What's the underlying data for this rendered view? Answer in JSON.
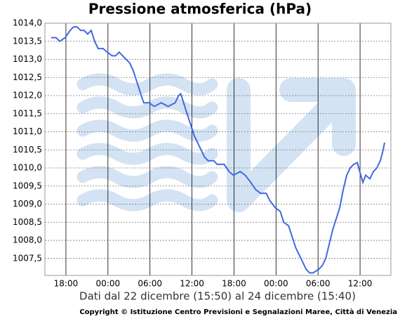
{
  "chart_data": {
    "type": "line",
    "title": "Pressione atmosferica (hPa)",
    "x_label": "Dati dal 22 dicembre (15:50) al 24 dicembre (15:40)",
    "source": "Copyright © Istituzione Centro Previsioni e Segnalazioni Maree, Città di Venezia",
    "x": [
      15.9,
      16.6,
      17.1,
      17.9,
      18.6,
      19.1,
      19.6,
      20.1,
      20.6,
      21.1,
      21.6,
      22.1,
      22.6,
      23.3,
      23.9,
      24.6,
      25.1,
      25.6,
      26.1,
      26.6,
      27.1,
      27.6,
      28.1,
      28.6,
      29.1,
      29.9,
      30.6,
      31.6,
      32.6,
      33.6,
      34.1,
      34.4,
      34.8,
      35.3,
      35.8,
      36.3,
      36.8,
      37.3,
      37.8,
      38.3,
      39.1,
      39.6,
      40.6,
      41.3,
      41.9,
      42.9,
      43.6,
      44.4,
      45.1,
      45.8,
      46.6,
      47.1,
      47.9,
      48.6,
      49.1,
      49.8,
      50.3,
      50.8,
      51.3,
      51.8,
      52.3,
      52.8,
      53.3,
      54.1,
      54.6,
      55.1,
      55.6,
      56.1,
      56.6,
      57.1,
      57.6,
      58.1,
      58.6,
      59.1,
      59.6,
      60.1,
      60.4,
      60.8,
      61.4,
      61.9,
      62.4,
      62.9,
      63.3,
      63.5
    ],
    "series": [
      {
        "name": "Pressione",
        "color": "#4169e1",
        "values": [
          1013.6,
          1013.6,
          1013.5,
          1013.6,
          1013.8,
          1013.9,
          1013.9,
          1013.8,
          1013.8,
          1013.7,
          1013.8,
          1013.5,
          1013.3,
          1013.3,
          1013.2,
          1013.1,
          1013.1,
          1013.2,
          1013.1,
          1013.0,
          1012.9,
          1012.7,
          1012.4,
          1012.1,
          1011.8,
          1011.8,
          1011.7,
          1011.8,
          1011.7,
          1011.8,
          1012.0,
          1012.05,
          1011.8,
          1011.5,
          1011.2,
          1010.9,
          1010.7,
          1010.5,
          1010.3,
          1010.2,
          1010.2,
          1010.1,
          1010.1,
          1009.9,
          1009.8,
          1009.9,
          1009.8,
          1009.6,
          1009.4,
          1009.3,
          1009.3,
          1009.1,
          1008.9,
          1008.8,
          1008.5,
          1008.4,
          1008.1,
          1007.8,
          1007.6,
          1007.4,
          1007.2,
          1007.1,
          1007.1,
          1007.2,
          1007.3,
          1007.5,
          1007.9,
          1008.3,
          1008.6,
          1008.9,
          1009.4,
          1009.8,
          1010.0,
          1010.1,
          1010.15,
          1009.8,
          1009.6,
          1009.8,
          1009.7,
          1009.9,
          1010.0,
          1010.2,
          1010.5,
          1010.7
        ]
      }
    ],
    "xlim": [
      15,
      64.4
    ],
    "xticks": [
      {
        "value": 18,
        "label": "18:00"
      },
      {
        "value": 24,
        "label": "00:00"
      },
      {
        "value": 30,
        "label": "06:00"
      },
      {
        "value": 36,
        "label": "12:00"
      },
      {
        "value": 42,
        "label": "18:00"
      },
      {
        "value": 48,
        "label": "00:00"
      },
      {
        "value": 54,
        "label": "06:00"
      },
      {
        "value": 60,
        "label": "12:00"
      }
    ],
    "ylim": [
      1007.03,
      1014.0
    ],
    "yticks": [
      {
        "value": 1007.5,
        "label": "1007,5"
      },
      {
        "value": 1008.0,
        "label": "1008,0"
      },
      {
        "value": 1008.5,
        "label": "1008,5"
      },
      {
        "value": 1009.0,
        "label": "1009,0"
      },
      {
        "value": 1009.5,
        "label": "1009,5"
      },
      {
        "value": 1010.0,
        "label": "1010,0"
      },
      {
        "value": 1010.5,
        "label": "1010,5"
      },
      {
        "value": 1011.0,
        "label": "1011,0"
      },
      {
        "value": 1011.5,
        "label": "1011,5"
      },
      {
        "value": 1012.0,
        "label": "1012,0"
      },
      {
        "value": 1012.5,
        "label": "1012,5"
      },
      {
        "value": 1013.0,
        "label": "1013,0"
      },
      {
        "value": 1013.5,
        "label": "1013,5"
      },
      {
        "value": 1014.0,
        "label": "1014,0"
      }
    ],
    "grid": true
  }
}
